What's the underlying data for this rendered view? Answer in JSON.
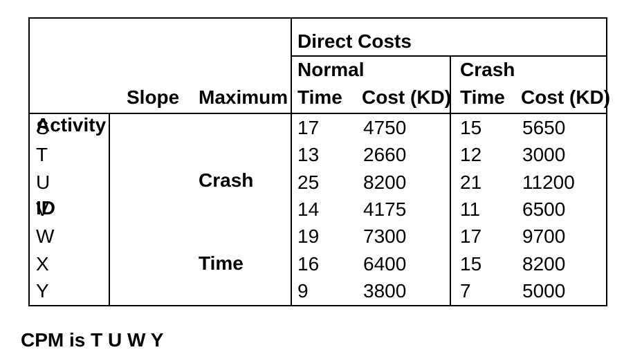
{
  "colors": {
    "background": "#ffffff",
    "text": "#000000",
    "border": "#000000"
  },
  "table": {
    "header": {
      "activity": {
        "line1": "Activity",
        "line2": "ID"
      },
      "slope": "Slope",
      "max_crash": {
        "line1": "Maximum",
        "line2": "Crash",
        "line3": "Time"
      },
      "direct_costs": "Direct Costs",
      "normal": {
        "label": "Normal",
        "time": "Time",
        "cost": "Cost (KD)"
      },
      "crash": {
        "label": "Crash",
        "time": "Time",
        "cost": "Cost (KD)"
      }
    },
    "rows": [
      {
        "id": "S",
        "slope": "",
        "max_crash_time": "",
        "normal_time": "17",
        "normal_cost": "4750",
        "crash_time": "15",
        "crash_cost": "5650"
      },
      {
        "id": "T",
        "slope": "",
        "max_crash_time": "",
        "normal_time": "13",
        "normal_cost": "2660",
        "crash_time": "12",
        "crash_cost": "3000"
      },
      {
        "id": "U",
        "slope": "",
        "max_crash_time": "",
        "normal_time": "25",
        "normal_cost": "8200",
        "crash_time": "21",
        "crash_cost": "11200"
      },
      {
        "id": "V",
        "slope": "",
        "max_crash_time": "",
        "normal_time": "14",
        "normal_cost": "4175",
        "crash_time": "11",
        "crash_cost": "6500"
      },
      {
        "id": "W",
        "slope": "",
        "max_crash_time": "",
        "normal_time": "19",
        "normal_cost": "7300",
        "crash_time": "17",
        "crash_cost": "9700"
      },
      {
        "id": "X",
        "slope": "",
        "max_crash_time": "",
        "normal_time": "16",
        "normal_cost": "6400",
        "crash_time": "15",
        "crash_cost": "8200"
      },
      {
        "id": "Y",
        "slope": "",
        "max_crash_time": "",
        "normal_time": "9",
        "normal_cost": "3800",
        "crash_time": "7",
        "crash_cost": "5000"
      }
    ]
  },
  "footer": {
    "cpm_note": "CPM is T U W Y"
  }
}
